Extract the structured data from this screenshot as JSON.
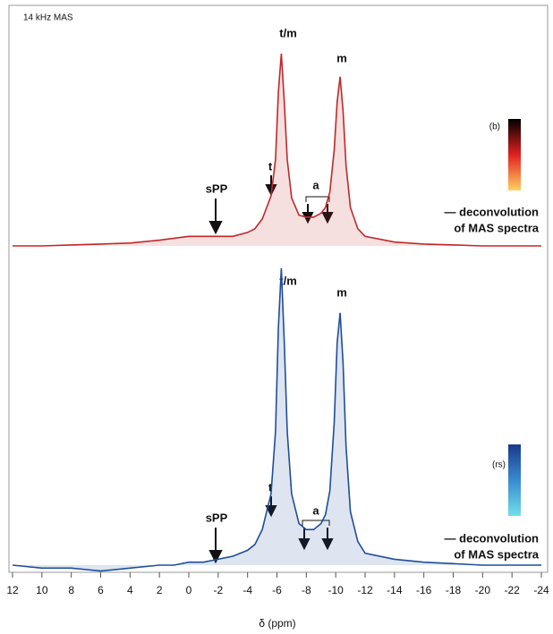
{
  "chart_data": [
    {
      "type": "line",
      "annotations": [
        "14 kHz MAS",
        "t/m",
        "m",
        "t",
        "sPP",
        "a",
        "(b)",
        "— deconvolution",
        "of MAS spectra"
      ],
      "colorbar": [
        "#000000",
        "#e02020",
        "#ffd060"
      ],
      "xlim": [
        12,
        -24
      ],
      "ylim": [
        0,
        100
      ],
      "x": [
        12,
        10,
        8,
        6,
        4,
        2,
        1,
        0,
        -1,
        -2,
        -3,
        -4,
        -4.5,
        -5,
        -5.3,
        -5.6,
        -5.9,
        -6.1,
        -6.3,
        -6.5,
        -6.7,
        -7,
        -7.5,
        -8,
        -8.5,
        -9,
        -9.3,
        -9.6,
        -9.9,
        -10.1,
        -10.3,
        -10.5,
        -10.7,
        -11,
        -11.5,
        -12,
        -14,
        -16,
        -18,
        -20,
        -22,
        -24
      ],
      "series": [
        {
          "color": "#c0282a",
          "values": [
            0,
            0,
            0.5,
            1,
            1.5,
            3,
            4,
            5,
            5,
            5,
            5,
            7,
            9,
            14,
            20,
            26,
            45,
            80,
            100,
            75,
            45,
            25,
            16,
            15,
            15,
            17,
            20,
            28,
            50,
            75,
            88,
            70,
            42,
            20,
            9,
            5,
            2,
            1,
            0.5,
            0,
            0,
            0
          ]
        }
      ]
    },
    {
      "type": "line",
      "annotations": [
        "t/m",
        "m",
        "t",
        "sPP",
        "a",
        "(rs)",
        "— deconvolution",
        "of MAS spectra"
      ],
      "colorbar": [
        "#1a3a8a",
        "#3a8ad0",
        "#70e0e8"
      ],
      "xlim": [
        12,
        -24
      ],
      "ylim": [
        0,
        100
      ],
      "xticks": [
        12,
        10,
        8,
        6,
        4,
        2,
        0,
        -2,
        -4,
        -6,
        -8,
        -10,
        -12,
        -14,
        -16,
        -18,
        -20,
        -22,
        -24
      ],
      "xlabel": "δ (ppm)",
      "x": [
        12,
        10,
        8,
        6,
        4,
        2,
        1,
        0,
        -1,
        -2,
        -3,
        -4,
        -4.5,
        -5,
        -5.3,
        -5.6,
        -5.9,
        -6.1,
        -6.3,
        -6.5,
        -6.7,
        -7,
        -7.5,
        -8,
        -8.5,
        -9,
        -9.3,
        -9.6,
        -9.9,
        -10.1,
        -10.3,
        -10.5,
        -10.7,
        -11,
        -11.5,
        -12,
        -14,
        -16,
        -18,
        -20,
        -22,
        -24
      ],
      "series": [
        {
          "color": "#1f4e9a",
          "values": [
            0,
            -1,
            -1,
            -2,
            -1,
            0,
            0,
            1,
            1,
            2,
            3,
            5,
            7,
            12,
            18,
            24,
            45,
            80,
            100,
            75,
            45,
            24,
            14,
            12,
            12,
            14,
            17,
            25,
            48,
            75,
            85,
            68,
            40,
            18,
            8,
            4,
            2,
            1,
            0.5,
            0,
            0,
            0
          ]
        }
      ]
    }
  ]
}
